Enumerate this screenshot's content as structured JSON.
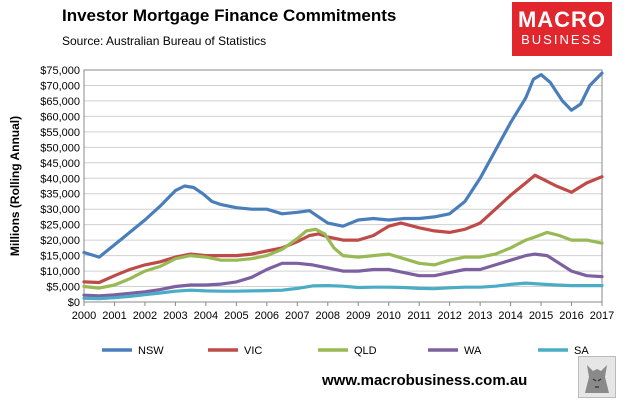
{
  "header": {
    "title": "Investor Mortgage Finance Commitments",
    "subtitle": "Source: Australian Bureau of Statistics"
  },
  "logo": {
    "line1": "MACRO",
    "line2": "BUSINESS",
    "color": "#e1262d"
  },
  "footer": {
    "url": "www.macrobusiness.com.au"
  },
  "chart_data": {
    "type": "line",
    "title": "Investor Mortgage Finance Commitments",
    "ylabel": "Millions (Rolling Annual)",
    "xlabel": "",
    "xlim": [
      2000,
      2017
    ],
    "ylim": [
      0,
      75000
    ],
    "y_ticks": [
      0,
      5000,
      10000,
      15000,
      20000,
      25000,
      30000,
      35000,
      40000,
      45000,
      50000,
      55000,
      60000,
      65000,
      70000,
      75000
    ],
    "y_tick_labels": [
      "$0",
      "$5,000",
      "$10,000",
      "$15,000",
      "$20,000",
      "$25,000",
      "$30,000",
      "$35,000",
      "$40,000",
      "$45,000",
      "$50,000",
      "$55,000",
      "$60,000",
      "$65,000",
      "$70,000",
      "$75,000"
    ],
    "x_ticks": [
      2000,
      2001,
      2002,
      2003,
      2004,
      2005,
      2006,
      2007,
      2008,
      2009,
      2010,
      2011,
      2012,
      2013,
      2014,
      2015,
      2016,
      2017
    ],
    "x_tick_labels": [
      "2000",
      "2001",
      "2002",
      "2003",
      "2004",
      "2005",
      "2006",
      "2007",
      "2008",
      "2009",
      "2010",
      "2011",
      "2012",
      "2013",
      "2014",
      "2015",
      "2016",
      "2017"
    ],
    "grid": "horizontal",
    "legend_position": "bottom",
    "series": [
      {
        "name": "NSW",
        "color": "#4a7ebb",
        "x": [
          2000,
          2000.5,
          2001,
          2001.5,
          2002,
          2002.5,
          2003,
          2003.3,
          2003.6,
          2003.9,
          2004.2,
          2004.5,
          2005,
          2005.5,
          2006,
          2006.5,
          2007,
          2007.4,
          2007.7,
          2008,
          2008.5,
          2009,
          2009.5,
          2010,
          2010.5,
          2011,
          2011.5,
          2012,
          2012.5,
          2013,
          2013.5,
          2014,
          2014.5,
          2014.75,
          2015,
          2015.3,
          2015.7,
          2016,
          2016.3,
          2016.6,
          2017
        ],
        "y": [
          16000,
          14500,
          18500,
          22500,
          26500,
          31000,
          36000,
          37500,
          37000,
          35000,
          32500,
          31500,
          30500,
          30000,
          30000,
          28500,
          29000,
          29500,
          27500,
          25500,
          24500,
          26500,
          27000,
          26500,
          27000,
          27000,
          27500,
          28500,
          32500,
          40000,
          49000,
          58000,
          66000,
          72000,
          73500,
          71000,
          65000,
          62000,
          64000,
          70000,
          74000
        ]
      },
      {
        "name": "VIC",
        "color": "#be4b48",
        "x": [
          2000,
          2000.5,
          2001,
          2001.5,
          2002,
          2002.5,
          2003,
          2003.5,
          2004,
          2004.5,
          2005,
          2005.5,
          2006,
          2006.5,
          2007,
          2007.4,
          2007.7,
          2008,
          2008.5,
          2009,
          2009.5,
          2010,
          2010.4,
          2010.8,
          2011,
          2011.5,
          2012,
          2012.5,
          2013,
          2013.5,
          2014,
          2014.5,
          2014.8,
          2015,
          2015.5,
          2016,
          2016.5,
          2017
        ],
        "y": [
          6500,
          6300,
          8500,
          10500,
          12000,
          13000,
          14500,
          15500,
          15000,
          15000,
          15000,
          15500,
          16500,
          17500,
          19500,
          21500,
          22000,
          21000,
          20000,
          20000,
          21500,
          24500,
          25500,
          24500,
          24000,
          23000,
          22500,
          23500,
          25500,
          30000,
          34500,
          38500,
          41000,
          40000,
          37500,
          35500,
          38500,
          40500
        ]
      },
      {
        "name": "QLD",
        "color": "#98b954",
        "x": [
          2000,
          2000.5,
          2001,
          2001.5,
          2002,
          2002.5,
          2003,
          2003.5,
          2004,
          2004.5,
          2005,
          2005.5,
          2006,
          2006.5,
          2007,
          2007.3,
          2007.6,
          2007.9,
          2008.2,
          2008.5,
          2009,
          2009.5,
          2010,
          2010.5,
          2011,
          2011.5,
          2012,
          2012.5,
          2013,
          2013.5,
          2014,
          2014.5,
          2014.8,
          2015.2,
          2015.6,
          2016,
          2016.5,
          2017
        ],
        "y": [
          5000,
          4500,
          5500,
          7500,
          10000,
          11500,
          14000,
          15000,
          14500,
          13500,
          13500,
          14000,
          15000,
          17000,
          20500,
          23000,
          23500,
          22000,
          17500,
          15000,
          14500,
          15000,
          15500,
          14000,
          12500,
          12000,
          13500,
          14500,
          14500,
          15500,
          17500,
          20000,
          21000,
          22500,
          21500,
          20000,
          20000,
          19000
        ]
      },
      {
        "name": "WA",
        "color": "#7d60a0",
        "x": [
          2000,
          2000.5,
          2001,
          2001.5,
          2002,
          2002.5,
          2003,
          2003.5,
          2004,
          2004.5,
          2005,
          2005.5,
          2006,
          2006.5,
          2007,
          2007.5,
          2008,
          2008.5,
          2009,
          2009.5,
          2010,
          2010.5,
          2011,
          2011.5,
          2012,
          2012.5,
          2013,
          2013.5,
          2014,
          2014.5,
          2014.8,
          2015.2,
          2015.6,
          2016,
          2016.5,
          2017
        ],
        "y": [
          2200,
          2000,
          2300,
          2800,
          3300,
          4000,
          5000,
          5500,
          5500,
          5800,
          6500,
          8000,
          10500,
          12500,
          12500,
          12000,
          11000,
          10000,
          10000,
          10500,
          10500,
          9500,
          8500,
          8500,
          9500,
          10500,
          10500,
          12000,
          13500,
          15000,
          15500,
          15000,
          12500,
          10000,
          8500,
          8200
        ]
      },
      {
        "name": "SA",
        "color": "#4bacc6",
        "x": [
          2000,
          2000.5,
          2001,
          2001.5,
          2002,
          2002.5,
          2003,
          2003.5,
          2004,
          2004.5,
          2005,
          2005.5,
          2006,
          2006.5,
          2007,
          2007.5,
          2008,
          2008.5,
          2009,
          2009.5,
          2010,
          2010.5,
          2011,
          2011.5,
          2012,
          2012.5,
          2013,
          2013.5,
          2014,
          2014.5,
          2015,
          2015.5,
          2016,
          2016.5,
          2017
        ],
        "y": [
          1200,
          1100,
          1400,
          1800,
          2400,
          2900,
          3500,
          3800,
          3600,
          3500,
          3500,
          3600,
          3700,
          3800,
          4400,
          5200,
          5300,
          5100,
          4700,
          4800,
          4800,
          4700,
          4400,
          4300,
          4600,
          4800,
          4800,
          5100,
          5700,
          6100,
          5800,
          5500,
          5300,
          5300,
          5300
        ]
      }
    ]
  }
}
